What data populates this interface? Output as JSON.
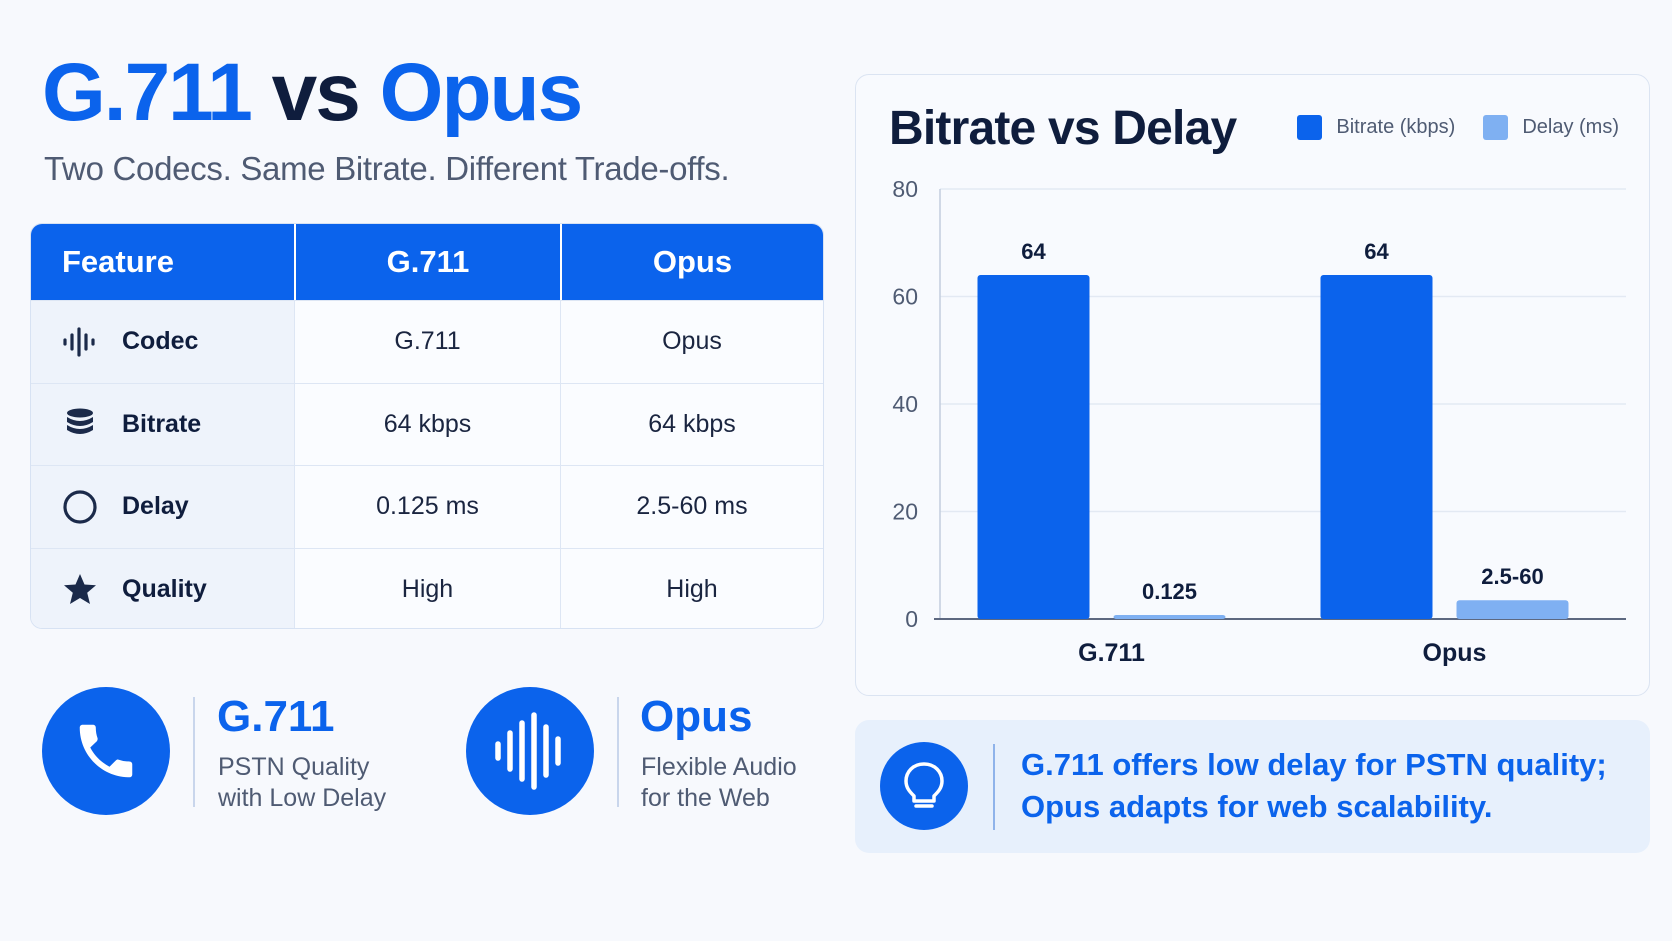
{
  "header": {
    "title_part1": "G.711",
    "title_part2": "vs",
    "title_part3": "Opus",
    "subtitle": "Two Codecs. Same Bitrate. Different Trade-offs."
  },
  "table": {
    "headers": [
      "Feature",
      "G.711",
      "Opus"
    ],
    "rows": [
      {
        "feature": "Codec",
        "icon": "sound-wave-icon",
        "g711": "G.711",
        "opus": "Opus"
      },
      {
        "feature": "Bitrate",
        "icon": "database-stack-icon",
        "g711": "64 kbps",
        "opus": "64 kbps"
      },
      {
        "feature": "Delay",
        "icon": "circle-icon",
        "g711": "0.125 ms",
        "opus": "2.5-60 ms"
      },
      {
        "feature": "Quality",
        "icon": "star-icon",
        "g711": "High",
        "opus": "High"
      }
    ]
  },
  "cards": [
    {
      "title": "G.711",
      "line1": "PSTN Quality",
      "line2": "with Low Delay",
      "icon": "phone-icon"
    },
    {
      "title": "Opus",
      "line1": "Flexible Audio",
      "line2": "for the Web",
      "icon": "sound-wave-icon"
    }
  ],
  "chart_data": {
    "type": "bar",
    "title": "Bitrate vs Delay",
    "categories": [
      "G.711",
      "Opus"
    ],
    "series": [
      {
        "name": "Bitrate (kbps)",
        "values": [
          64,
          64
        ],
        "labels": [
          "64",
          "64"
        ],
        "color": "#0b63ec"
      },
      {
        "name": "Delay (ms)",
        "values": [
          0.125,
          3.5
        ],
        "labels": [
          "0.125",
          "2.5-60"
        ],
        "color": "#7fb0f2"
      }
    ],
    "ylim": [
      0,
      80
    ],
    "yticks": [
      0,
      20,
      40,
      60,
      80
    ],
    "grid": true,
    "legend_position": "top-right",
    "xlabel": "",
    "ylabel": ""
  },
  "insight": {
    "text_line1": "G.711 offers low delay for PSTN quality;",
    "text_line2": "Opus adapts for web scalability.",
    "icon": "lightbulb-icon"
  },
  "colors": {
    "accent": "#0b63ec",
    "accent_light": "#7fb0f2",
    "dark_text": "#0f1d3d"
  }
}
